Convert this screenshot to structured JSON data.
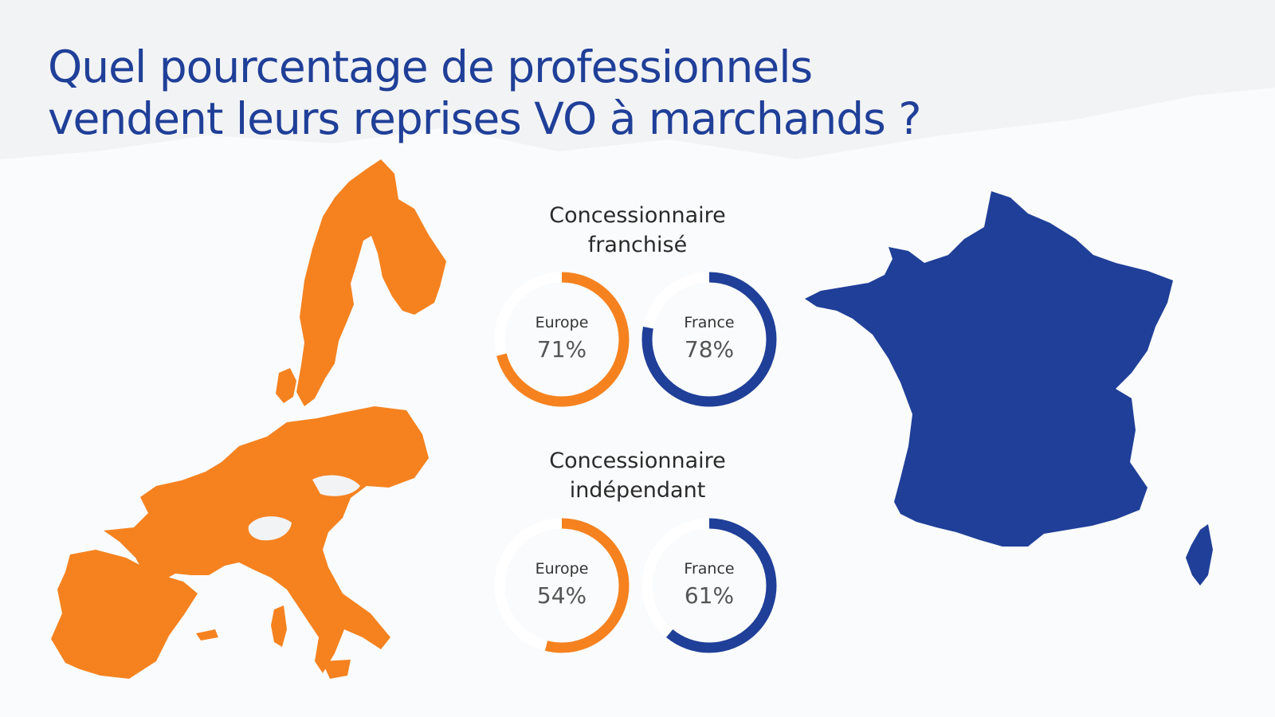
{
  "title": {
    "line1": "Quel pourcentage de professionnels",
    "line2": "vendent leurs reprises VO à marchands ?"
  },
  "colors": {
    "europe": "#f5821f",
    "france": "#1f3f98",
    "track": "#ffffff",
    "background": "#f2f3f5"
  },
  "chart_data": {
    "type": "donut",
    "groups": [
      {
        "title_line1": "Concessionnaire",
        "title_line2": "franchisé",
        "series": [
          {
            "name": "Europe",
            "value": 71,
            "label": "71%"
          },
          {
            "name": "France",
            "value": 78,
            "label": "78%"
          }
        ]
      },
      {
        "title_line1": "Concessionnaire",
        "title_line2": "indépendant",
        "series": [
          {
            "name": "Europe",
            "value": 54,
            "label": "54%"
          },
          {
            "name": "France",
            "value": 61,
            "label": "61%"
          }
        ]
      }
    ]
  }
}
